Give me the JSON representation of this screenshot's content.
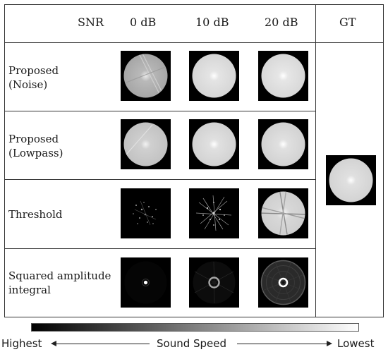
{
  "header": {
    "snr_label": "SNR",
    "columns": [
      "0 dB",
      "10 dB",
      "20 dB"
    ],
    "gt_label": "GT"
  },
  "rows": [
    {
      "label_lines": [
        "Proposed",
        "(Noise)"
      ]
    },
    {
      "label_lines": [
        "Proposed",
        "(Lowpass)"
      ]
    },
    {
      "label_lines": [
        "Threshold"
      ]
    },
    {
      "label_lines": [
        "Squared amplitude",
        "integral"
      ]
    }
  ],
  "legend": {
    "left": "Highest",
    "center": "Sound Speed",
    "right": "Lowest"
  }
}
